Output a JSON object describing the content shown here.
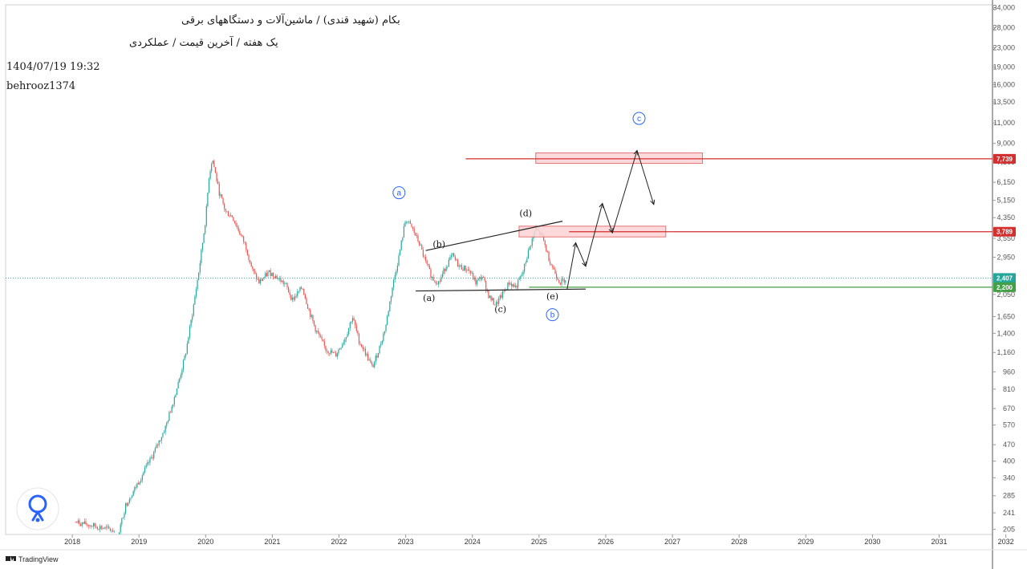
{
  "header": {
    "title_line1": "بکام (شهید قندی) / ماشین‌آلات و دستگاههای برقی",
    "title_line2": "یک هفته / آخرین قیمت / عملکردی",
    "datetime": "1404/07/19 19:32",
    "author": "behrooz1374"
  },
  "footer": {
    "brand": "TradingView"
  },
  "chart_data": {
    "type": "candlestick",
    "scale": "log",
    "xlabel": "",
    "ylabel": "",
    "x_ticks": [
      "2018",
      "2019",
      "2020",
      "2021",
      "2022",
      "2023",
      "2024",
      "2025",
      "2026",
      "2027",
      "2028",
      "2029",
      "2030",
      "2031",
      "2032"
    ],
    "y_ticks": [
      34000,
      28000,
      23000,
      19000,
      16000,
      13500,
      11000,
      9000,
      7500,
      6150,
      5150,
      4350,
      3550,
      2950,
      2050,
      1650,
      1400,
      1160,
      960,
      810,
      670,
      570,
      470,
      400,
      340,
      285,
      241,
      205
    ],
    "ylim": [
      195,
      35000
    ],
    "price_path": [
      [
        2018.55,
        220
      ],
      [
        2018.9,
        210
      ],
      [
        2019.2,
        200
      ],
      [
        2019.3,
        260
      ],
      [
        2019.5,
        330
      ],
      [
        2019.7,
        420
      ],
      [
        2019.9,
        560
      ],
      [
        2020.0,
        700
      ],
      [
        2020.1,
        880
      ],
      [
        2020.2,
        1150
      ],
      [
        2020.3,
        1700
      ],
      [
        2020.4,
        2600
      ],
      [
        2020.5,
        4300
      ],
      [
        2020.55,
        6500
      ],
      [
        2020.6,
        7800
      ],
      [
        2020.7,
        5600
      ],
      [
        2020.8,
        4600
      ],
      [
        2020.9,
        4400
      ],
      [
        2021.0,
        3800
      ],
      [
        2021.1,
        3300
      ],
      [
        2021.2,
        2600
      ],
      [
        2021.3,
        2300
      ],
      [
        2021.45,
        2550
      ],
      [
        2021.55,
        2450
      ],
      [
        2021.7,
        2250
      ],
      [
        2021.8,
        1950
      ],
      [
        2021.95,
        2200
      ],
      [
        2022.05,
        1750
      ],
      [
        2022.15,
        1450
      ],
      [
        2022.3,
        1200
      ],
      [
        2022.45,
        1130
      ],
      [
        2022.6,
        1350
      ],
      [
        2022.7,
        1650
      ],
      [
        2022.8,
        1300
      ],
      [
        2022.9,
        1150
      ],
      [
        2023.0,
        1000
      ],
      [
        2023.1,
        1200
      ],
      [
        2023.2,
        1500
      ],
      [
        2023.3,
        2200
      ],
      [
        2023.4,
        3000
      ],
      [
        2023.5,
        4300
      ],
      [
        2023.6,
        3900
      ],
      [
        2023.7,
        3400
      ],
      [
        2023.8,
        2800
      ],
      [
        2023.9,
        2400
      ],
      [
        2024.0,
        2300
      ],
      [
        2024.1,
        2700
      ],
      [
        2024.2,
        3000
      ],
      [
        2024.3,
        2700
      ],
      [
        2024.45,
        2600
      ],
      [
        2024.55,
        2300
      ],
      [
        2024.65,
        2450
      ],
      [
        2024.75,
        2000
      ],
      [
        2024.85,
        1850
      ],
      [
        2024.95,
        2050
      ],
      [
        2025.05,
        2300
      ],
      [
        2025.15,
        2200
      ],
      [
        2025.25,
        2500
      ],
      [
        2025.35,
        3200
      ],
      [
        2025.45,
        3900
      ],
      [
        2025.55,
        3600
      ],
      [
        2025.65,
        2900
      ],
      [
        2025.75,
        2500
      ],
      [
        2025.82,
        2300
      ],
      [
        2025.9,
        2400
      ]
    ],
    "projection": [
      [
        2025.92,
        2150
      ],
      [
        2026.05,
        3400
      ],
      [
        2026.2,
        2700
      ],
      [
        2026.45,
        5000
      ],
      [
        2026.6,
        3750
      ],
      [
        2026.97,
        8400
      ],
      [
        2027.22,
        4950
      ]
    ],
    "trendlines": [
      {
        "from": [
          2023.8,
          3150
        ],
        "to": [
          2025.85,
          4200
        ]
      },
      {
        "from": [
          2023.65,
          2120
        ],
        "to": [
          2026.2,
          2160
        ]
      }
    ],
    "resistance_levels": [
      {
        "value": 7739,
        "label": "7,739",
        "from": 2024.4
      },
      {
        "value": 3789,
        "label": "3,789",
        "from": 2025.95
      }
    ],
    "support_level": {
      "value": 2200,
      "label": "2,200",
      "from": 2025.35
    },
    "last_price": {
      "value": 2407,
      "label": "2,407"
    },
    "zones": [
      {
        "x_from": 2025.45,
        "x_to": 2027.95,
        "y_low": 7400,
        "y_high": 8200
      },
      {
        "x_from": 2025.2,
        "x_to": 2027.4,
        "y_low": 3600,
        "y_high": 4000
      }
    ],
    "wave_labels": [
      {
        "text": "(a)",
        "x": 2023.85,
        "y": 1920
      },
      {
        "text": "(b)",
        "x": 2024.0,
        "y": 3250
      },
      {
        "text": "(c)",
        "x": 2024.92,
        "y": 1720
      },
      {
        "text": "(d)",
        "x": 2025.3,
        "y": 4400
      },
      {
        "text": "(e)",
        "x": 2025.7,
        "y": 1950
      }
    ],
    "circle_labels": [
      {
        "text": "a",
        "x": 2023.4,
        "y": 5550
      },
      {
        "text": "b",
        "x": 2025.7,
        "y": 1680
      },
      {
        "text": "c",
        "x": 2027.0,
        "y": 11500
      }
    ],
    "colors": {
      "up": "#26a69a",
      "down": "#ef5350",
      "resistance": "#d32f2f",
      "support": "#43a047",
      "last_price": "#26a69a",
      "zone_fill": "#fbd3d6",
      "zone_border": "#e57373",
      "annotation_blue": "#2962ff"
    }
  }
}
